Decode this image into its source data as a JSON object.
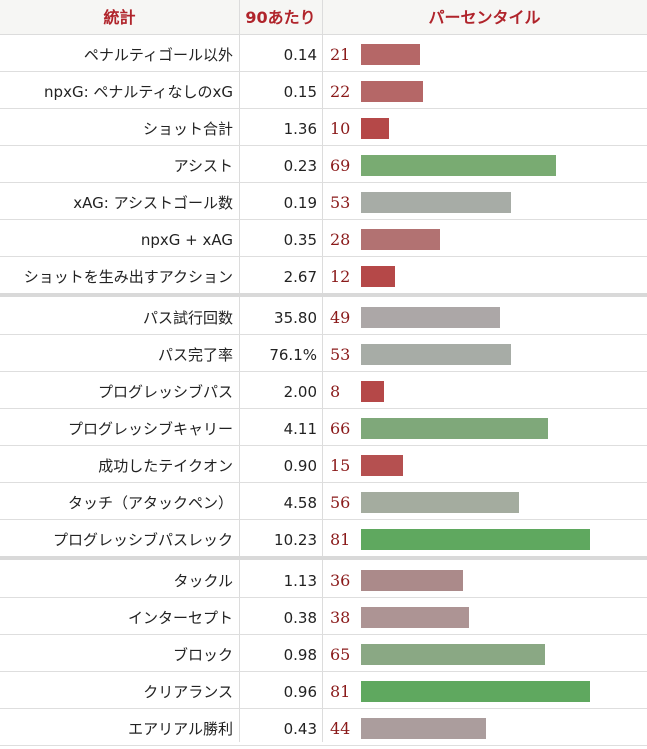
{
  "header": {
    "stat": "統計",
    "per90": "90あたり",
    "percentile": "パーセンタイル"
  },
  "colors": {
    "header_text": "#b0242b",
    "pct_text": "#8a1a1a"
  },
  "groups": [
    {
      "rows": [
        {
          "stat": "ペナルティゴール以外",
          "per90": "0.14",
          "pct": 21,
          "color": "#b56767"
        },
        {
          "stat": "npxG: ペナルティなしのxG",
          "per90": "0.15",
          "pct": 22,
          "color": "#b56767"
        },
        {
          "stat": "ショット合計",
          "per90": "1.36",
          "pct": 10,
          "color": "#b54848"
        },
        {
          "stat": "アシスト",
          "per90": "0.23",
          "pct": 69,
          "color": "#79ab72"
        },
        {
          "stat": "xAG: アシストゴール数",
          "per90": "0.19",
          "pct": 53,
          "color": "#a7aca6"
        },
        {
          "stat": "npxG + xAG",
          "per90": "0.35",
          "pct": 28,
          "color": "#b27272"
        },
        {
          "stat": "ショットを生み出すアクション",
          "per90": "2.67",
          "pct": 12,
          "color": "#b54848"
        }
      ]
    },
    {
      "rows": [
        {
          "stat": "パス試行回数",
          "per90": "35.80",
          "pct": 49,
          "color": "#aca7a7"
        },
        {
          "stat": "パス完了率",
          "per90": "76.1%",
          "pct": 53,
          "color": "#a7aca6"
        },
        {
          "stat": "プログレッシブパス",
          "per90": "2.00",
          "pct": 8,
          "color": "#b54848"
        },
        {
          "stat": "プログレッシブキャリー",
          "per90": "4.11",
          "pct": 66,
          "color": "#7fa87a"
        },
        {
          "stat": "成功したテイクオン",
          "per90": "0.90",
          "pct": 15,
          "color": "#b55050"
        },
        {
          "stat": "タッチ（アタックペン）",
          "per90": "4.58",
          "pct": 56,
          "color": "#a4ac9f"
        },
        {
          "stat": "プログレッシブパスレック",
          "per90": "10.23",
          "pct": 81,
          "color": "#5fa85f"
        }
      ]
    },
    {
      "rows": [
        {
          "stat": "タックル",
          "per90": "1.13",
          "pct": 36,
          "color": "#ab8a8a"
        },
        {
          "stat": "インターセプト",
          "per90": "0.38",
          "pct": 38,
          "color": "#ad9494"
        },
        {
          "stat": "ブロック",
          "per90": "0.98",
          "pct": 65,
          "color": "#8aa884"
        },
        {
          "stat": "クリアランス",
          "per90": "0.96",
          "pct": 81,
          "color": "#5fa85f"
        },
        {
          "stat": "エアリアル勝利",
          "per90": "0.43",
          "pct": 44,
          "color": "#ab9d9d"
        }
      ]
    }
  ]
}
